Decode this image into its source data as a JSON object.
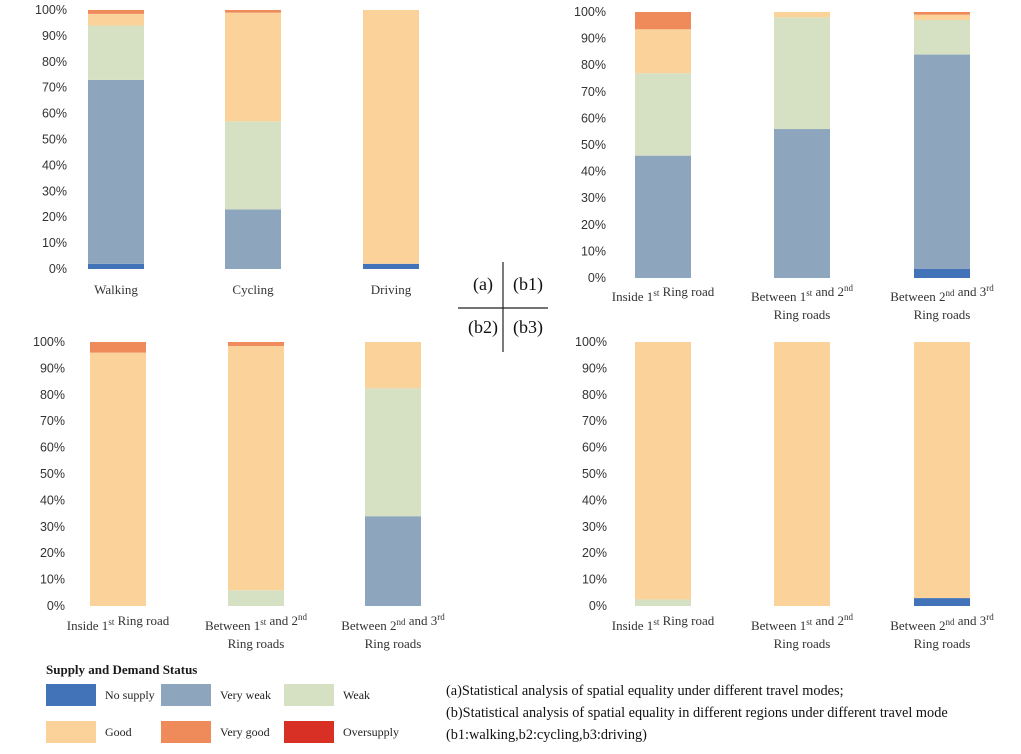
{
  "y_tick_labels": [
    "0%",
    "10%",
    "20%",
    "30%",
    "40%",
    "50%",
    "60%",
    "70%",
    "80%",
    "90%",
    "100%"
  ],
  "colors": {
    "No supply": "#4273b8",
    "Very weak": "#8ea6bd",
    "Weak": "#d6e0c3",
    "Good": "#fbd29a",
    "Very good": "#ef8a5b",
    "Oversupply": "#d93025"
  },
  "chart_data": [
    {
      "id": "a",
      "type": "bar",
      "stacked": true,
      "categories": [
        [
          "Walking"
        ],
        [
          "Cycling"
        ],
        [
          "Driving"
        ]
      ],
      "series": [
        {
          "name": "No supply",
          "values": [
            2,
            0,
            2
          ]
        },
        {
          "name": "Very weak",
          "values": [
            71,
            23,
            0
          ]
        },
        {
          "name": "Weak",
          "values": [
            21,
            34,
            0
          ]
        },
        {
          "name": "Good",
          "values": [
            4.5,
            42,
            98
          ]
        },
        {
          "name": "Very good",
          "values": [
            1.5,
            1,
            0
          ]
        },
        {
          "name": "Oversupply",
          "values": [
            0,
            0,
            0
          ]
        }
      ],
      "ylim": [
        0,
        100
      ]
    },
    {
      "id": "b1",
      "type": "bar",
      "stacked": true,
      "categories": [
        [
          "Inside  1st Ring road"
        ],
        [
          "Between  1st and 2nd",
          "Ring roads"
        ],
        [
          "Between  2nd and 3rd",
          "Ring roads"
        ]
      ],
      "series": [
        {
          "name": "No supply",
          "values": [
            0,
            0,
            3.5
          ]
        },
        {
          "name": "Very weak",
          "values": [
            46,
            56,
            80.5
          ]
        },
        {
          "name": "Weak",
          "values": [
            31,
            42,
            13
          ]
        },
        {
          "name": "Good",
          "values": [
            16.5,
            2,
            2
          ]
        },
        {
          "name": "Very good",
          "values": [
            6.5,
            0,
            1
          ]
        },
        {
          "name": "Oversupply",
          "values": [
            0,
            0,
            0
          ]
        }
      ],
      "ylim": [
        0,
        100
      ]
    },
    {
      "id": "b2",
      "type": "bar",
      "stacked": true,
      "categories": [
        [
          "Inside  1st Ring road"
        ],
        [
          "Between  1st and  2nd",
          "Ring roads"
        ],
        [
          "Between 2nd and  3rd",
          "Ring roads"
        ]
      ],
      "series": [
        {
          "name": "No supply",
          "values": [
            0,
            0,
            0
          ]
        },
        {
          "name": "Very weak",
          "values": [
            0,
            0,
            34
          ]
        },
        {
          "name": "Weak",
          "values": [
            0,
            6,
            48.5
          ]
        },
        {
          "name": "Good",
          "values": [
            96,
            92.5,
            17.5
          ]
        },
        {
          "name": "Very good",
          "values": [
            4,
            1.5,
            0
          ]
        },
        {
          "name": "Oversupply",
          "values": [
            0,
            0,
            0
          ]
        }
      ],
      "ylim": [
        0,
        100
      ]
    },
    {
      "id": "b3",
      "type": "bar",
      "stacked": true,
      "categories": [
        [
          "Inside  1st Ring road"
        ],
        [
          "Between  1st and  2nd",
          "Ring roads"
        ],
        [
          "Between 2nd and 3rd",
          "Ring roads"
        ]
      ],
      "series": [
        {
          "name": "No supply",
          "values": [
            0,
            0,
            3
          ]
        },
        {
          "name": "Very weak",
          "values": [
            0,
            0,
            0
          ]
        },
        {
          "name": "Weak",
          "values": [
            2.5,
            0,
            0
          ]
        },
        {
          "name": "Good",
          "values": [
            97.5,
            100,
            97
          ]
        },
        {
          "name": "Very good",
          "values": [
            0,
            0,
            0
          ]
        },
        {
          "name": "Oversupply",
          "values": [
            0,
            0,
            0
          ]
        }
      ],
      "ylim": [
        0,
        100
      ]
    }
  ],
  "panel_labels": {
    "a": "(a)",
    "b1": "(b1)",
    "b2": "(b2)",
    "b3": "(b3)"
  },
  "legend": {
    "title": "Supply and Demand Status",
    "items": [
      {
        "label": "No supply",
        "color": "#4273b8"
      },
      {
        "label": "Very weak",
        "color": "#8ea6bd"
      },
      {
        "label": "Weak",
        "color": "#d6e0c3"
      },
      {
        "label": "Good",
        "color": "#fbd29a"
      },
      {
        "label": "Very good",
        "color": "#ef8a5b"
      },
      {
        "label": "Oversupply",
        "color": "#d93025"
      }
    ]
  },
  "caption": {
    "line_a": "(a)Statistical analysis of spatial equality under different travel modes;",
    "line_b": "(b)Statistical analysis of spatial equality in different regions under different travel mode (b1:walking,b2:cycling,b3:driving)"
  }
}
